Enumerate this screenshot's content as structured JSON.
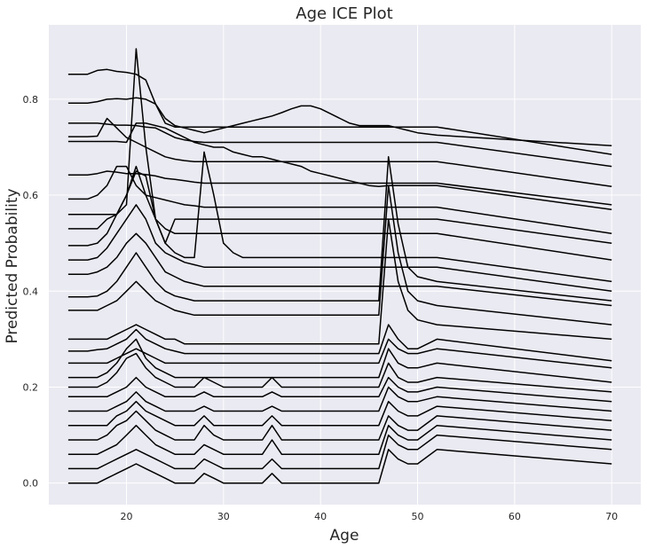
{
  "chart_data": {
    "type": "line",
    "title": "Age ICE Plot",
    "xlabel": "Age",
    "ylabel": "Predicted Probability",
    "xlim": [
      12,
      73
    ],
    "ylim": [
      -0.045,
      0.955
    ],
    "xticks": [
      20,
      30,
      40,
      50,
      60,
      70
    ],
    "yticks": [
      0.0,
      0.2,
      0.4,
      0.6,
      0.8
    ],
    "ytick_labels": [
      "0.0",
      "0.2",
      "0.4",
      "0.6",
      "0.8"
    ],
    "grid": true,
    "style": {
      "background": "#EAEAF2",
      "grid_color": "#FFFFFF",
      "line_color": "#000000"
    },
    "x": [
      14,
      16,
      17,
      18,
      19,
      20,
      21,
      22,
      23,
      24,
      25,
      26,
      27,
      28,
      29,
      30,
      31,
      32,
      33,
      34,
      35,
      36,
      37,
      38,
      39,
      40,
      41,
      42,
      43,
      44,
      45,
      46,
      47,
      48,
      49,
      50,
      52,
      70
    ],
    "series": [
      {
        "values": [
          0.852,
          0.852,
          0.86,
          0.862,
          0.858,
          0.856,
          0.852,
          0.84,
          0.79,
          0.75,
          0.742,
          0.742,
          0.742,
          0.742,
          0.742,
          0.742,
          0.742,
          0.742,
          0.742,
          0.742,
          0.742,
          0.742,
          0.742,
          0.742,
          0.742,
          0.742,
          0.742,
          0.742,
          0.742,
          0.742,
          0.742,
          0.742,
          0.742,
          0.742,
          0.742,
          0.742,
          0.742,
          0.685
        ]
      },
      {
        "values": [
          0.792,
          0.792,
          0.795,
          0.8,
          0.801,
          0.8,
          0.803,
          0.8,
          0.79,
          0.76,
          0.745,
          0.74,
          0.735,
          0.73,
          0.735,
          0.74,
          0.745,
          0.75,
          0.755,
          0.76,
          0.765,
          0.772,
          0.78,
          0.786,
          0.786,
          0.78,
          0.77,
          0.76,
          0.75,
          0.745,
          0.745,
          0.745,
          0.745,
          0.74,
          0.735,
          0.73,
          0.725,
          0.703
        ]
      },
      {
        "values": [
          0.75,
          0.75,
          0.75,
          0.748,
          0.746,
          0.746,
          0.745,
          0.742,
          0.74,
          0.73,
          0.72,
          0.715,
          0.712,
          0.71,
          0.71,
          0.71,
          0.71,
          0.71,
          0.71,
          0.71,
          0.71,
          0.71,
          0.71,
          0.71,
          0.71,
          0.71,
          0.71,
          0.71,
          0.71,
          0.71,
          0.71,
          0.71,
          0.71,
          0.71,
          0.71,
          0.71,
          0.71,
          0.66
        ]
      },
      {
        "values": [
          0.722,
          0.722,
          0.723,
          0.76,
          0.74,
          0.72,
          0.71,
          0.7,
          0.69,
          0.68,
          0.675,
          0.672,
          0.67,
          0.67,
          0.67,
          0.67,
          0.67,
          0.67,
          0.67,
          0.67,
          0.67,
          0.67,
          0.67,
          0.67,
          0.67,
          0.67,
          0.67,
          0.67,
          0.67,
          0.67,
          0.67,
          0.67,
          0.67,
          0.67,
          0.67,
          0.67,
          0.67,
          0.618
        ]
      },
      {
        "values": [
          0.712,
          0.712,
          0.712,
          0.712,
          0.712,
          0.71,
          0.75,
          0.75,
          0.745,
          0.74,
          0.73,
          0.72,
          0.71,
          0.705,
          0.7,
          0.7,
          0.69,
          0.685,
          0.68,
          0.68,
          0.675,
          0.67,
          0.665,
          0.66,
          0.65,
          0.645,
          0.64,
          0.635,
          0.63,
          0.625,
          0.62,
          0.618,
          0.62,
          0.62,
          0.62,
          0.62,
          0.62,
          0.57
        ]
      },
      {
        "values": [
          0.642,
          0.642,
          0.645,
          0.65,
          0.648,
          0.645,
          0.645,
          0.643,
          0.64,
          0.635,
          0.633,
          0.63,
          0.627,
          0.625,
          0.625,
          0.625,
          0.625,
          0.625,
          0.625,
          0.625,
          0.625,
          0.625,
          0.625,
          0.625,
          0.625,
          0.625,
          0.625,
          0.625,
          0.625,
          0.625,
          0.625,
          0.625,
          0.625,
          0.625,
          0.625,
          0.625,
          0.625,
          0.58
        ]
      },
      {
        "values": [
          0.592,
          0.592,
          0.6,
          0.62,
          0.66,
          0.66,
          0.62,
          0.6,
          0.595,
          0.59,
          0.585,
          0.58,
          0.578,
          0.575,
          0.575,
          0.575,
          0.575,
          0.575,
          0.575,
          0.575,
          0.575,
          0.575,
          0.575,
          0.575,
          0.575,
          0.575,
          0.575,
          0.575,
          0.575,
          0.575,
          0.575,
          0.575,
          0.575,
          0.575,
          0.575,
          0.575,
          0.575,
          0.52
        ]
      },
      {
        "values": [
          0.56,
          0.56,
          0.56,
          0.56,
          0.56,
          0.6,
          0.65,
          0.64,
          0.55,
          0.5,
          0.55,
          0.55,
          0.55,
          0.55,
          0.55,
          0.55,
          0.55,
          0.55,
          0.55,
          0.55,
          0.55,
          0.55,
          0.55,
          0.55,
          0.55,
          0.55,
          0.55,
          0.55,
          0.55,
          0.55,
          0.55,
          0.55,
          0.55,
          0.55,
          0.55,
          0.55,
          0.55,
          0.5
        ]
      },
      {
        "values": [
          0.53,
          0.53,
          0.53,
          0.55,
          0.56,
          0.58,
          0.905,
          0.7,
          0.55,
          0.53,
          0.52,
          0.52,
          0.52,
          0.52,
          0.52,
          0.52,
          0.52,
          0.52,
          0.52,
          0.52,
          0.52,
          0.52,
          0.52,
          0.52,
          0.52,
          0.52,
          0.52,
          0.52,
          0.52,
          0.52,
          0.52,
          0.52,
          0.52,
          0.52,
          0.52,
          0.52,
          0.52,
          0.465
        ]
      },
      {
        "values": [
          0.495,
          0.495,
          0.5,
          0.52,
          0.56,
          0.6,
          0.66,
          0.6,
          0.55,
          0.5,
          0.48,
          0.47,
          0.47,
          0.69,
          0.6,
          0.5,
          0.48,
          0.47,
          0.47,
          0.47,
          0.47,
          0.47,
          0.47,
          0.47,
          0.47,
          0.47,
          0.47,
          0.47,
          0.47,
          0.47,
          0.47,
          0.47,
          0.47,
          0.47,
          0.47,
          0.47,
          0.47,
          0.42
        ]
      },
      {
        "values": [
          0.465,
          0.465,
          0.47,
          0.49,
          0.52,
          0.55,
          0.58,
          0.55,
          0.5,
          0.48,
          0.47,
          0.46,
          0.455,
          0.45,
          0.45,
          0.45,
          0.45,
          0.45,
          0.45,
          0.45,
          0.45,
          0.45,
          0.45,
          0.45,
          0.45,
          0.45,
          0.45,
          0.45,
          0.45,
          0.45,
          0.45,
          0.45,
          0.45,
          0.45,
          0.45,
          0.45,
          0.45,
          0.4
        ]
      },
      {
        "values": [
          0.435,
          0.435,
          0.44,
          0.45,
          0.47,
          0.5,
          0.52,
          0.5,
          0.47,
          0.44,
          0.43,
          0.42,
          0.415,
          0.41,
          0.41,
          0.41,
          0.41,
          0.41,
          0.41,
          0.41,
          0.41,
          0.41,
          0.41,
          0.41,
          0.41,
          0.41,
          0.41,
          0.41,
          0.41,
          0.41,
          0.41,
          0.41,
          0.41,
          0.41,
          0.41,
          0.41,
          0.41,
          0.37
        ]
      },
      {
        "values": [
          0.388,
          0.388,
          0.39,
          0.4,
          0.42,
          0.45,
          0.48,
          0.45,
          0.42,
          0.4,
          0.39,
          0.385,
          0.38,
          0.38,
          0.38,
          0.38,
          0.38,
          0.38,
          0.38,
          0.38,
          0.38,
          0.38,
          0.38,
          0.38,
          0.38,
          0.38,
          0.38,
          0.38,
          0.38,
          0.38,
          0.38,
          0.38,
          0.68,
          0.54,
          0.45,
          0.43,
          0.42,
          0.38
        ]
      },
      {
        "values": [
          0.36,
          0.36,
          0.36,
          0.37,
          0.38,
          0.4,
          0.42,
          0.4,
          0.38,
          0.37,
          0.36,
          0.355,
          0.35,
          0.35,
          0.35,
          0.35,
          0.35,
          0.35,
          0.35,
          0.35,
          0.35,
          0.35,
          0.35,
          0.35,
          0.35,
          0.35,
          0.35,
          0.35,
          0.35,
          0.35,
          0.35,
          0.35,
          0.62,
          0.48,
          0.4,
          0.38,
          0.37,
          0.33
        ]
      },
      {
        "values": [
          0.3,
          0.3,
          0.3,
          0.3,
          0.31,
          0.32,
          0.33,
          0.32,
          0.31,
          0.3,
          0.3,
          0.29,
          0.29,
          0.29,
          0.29,
          0.29,
          0.29,
          0.29,
          0.29,
          0.29,
          0.29,
          0.29,
          0.29,
          0.29,
          0.29,
          0.29,
          0.29,
          0.29,
          0.29,
          0.29,
          0.29,
          0.29,
          0.55,
          0.42,
          0.36,
          0.34,
          0.33,
          0.3
        ]
      },
      {
        "values": [
          0.275,
          0.275,
          0.278,
          0.28,
          0.29,
          0.3,
          0.32,
          0.3,
          0.29,
          0.28,
          0.275,
          0.27,
          0.27,
          0.27,
          0.27,
          0.27,
          0.27,
          0.27,
          0.27,
          0.27,
          0.27,
          0.27,
          0.27,
          0.27,
          0.27,
          0.27,
          0.27,
          0.27,
          0.27,
          0.27,
          0.27,
          0.27,
          0.33,
          0.3,
          0.28,
          0.28,
          0.3,
          0.255
        ]
      },
      {
        "values": [
          0.25,
          0.25,
          0.25,
          0.25,
          0.26,
          0.27,
          0.28,
          0.27,
          0.26,
          0.25,
          0.25,
          0.25,
          0.25,
          0.25,
          0.25,
          0.25,
          0.25,
          0.25,
          0.25,
          0.25,
          0.25,
          0.25,
          0.25,
          0.25,
          0.25,
          0.25,
          0.25,
          0.25,
          0.25,
          0.25,
          0.25,
          0.25,
          0.3,
          0.28,
          0.27,
          0.27,
          0.28,
          0.24
        ]
      },
      {
        "values": [
          0.22,
          0.22,
          0.22,
          0.23,
          0.25,
          0.28,
          0.3,
          0.26,
          0.24,
          0.23,
          0.22,
          0.22,
          0.22,
          0.22,
          0.22,
          0.22,
          0.22,
          0.22,
          0.22,
          0.22,
          0.22,
          0.22,
          0.22,
          0.22,
          0.22,
          0.22,
          0.22,
          0.22,
          0.22,
          0.22,
          0.22,
          0.22,
          0.28,
          0.25,
          0.24,
          0.24,
          0.25,
          0.21
        ]
      },
      {
        "values": [
          0.2,
          0.2,
          0.2,
          0.21,
          0.23,
          0.26,
          0.27,
          0.24,
          0.22,
          0.21,
          0.2,
          0.2,
          0.2,
          0.22,
          0.21,
          0.2,
          0.2,
          0.2,
          0.2,
          0.2,
          0.22,
          0.2,
          0.2,
          0.2,
          0.2,
          0.2,
          0.2,
          0.2,
          0.2,
          0.2,
          0.2,
          0.2,
          0.25,
          0.22,
          0.21,
          0.21,
          0.22,
          0.19
        ]
      },
      {
        "values": [
          0.18,
          0.18,
          0.18,
          0.18,
          0.19,
          0.2,
          0.22,
          0.2,
          0.19,
          0.18,
          0.18,
          0.18,
          0.18,
          0.19,
          0.18,
          0.18,
          0.18,
          0.18,
          0.18,
          0.18,
          0.19,
          0.18,
          0.18,
          0.18,
          0.18,
          0.18,
          0.18,
          0.18,
          0.18,
          0.18,
          0.18,
          0.18,
          0.22,
          0.2,
          0.19,
          0.19,
          0.2,
          0.17
        ]
      },
      {
        "values": [
          0.15,
          0.15,
          0.15,
          0.15,
          0.16,
          0.17,
          0.19,
          0.17,
          0.16,
          0.15,
          0.15,
          0.15,
          0.15,
          0.16,
          0.15,
          0.15,
          0.15,
          0.15,
          0.15,
          0.15,
          0.16,
          0.15,
          0.15,
          0.15,
          0.15,
          0.15,
          0.15,
          0.15,
          0.15,
          0.15,
          0.15,
          0.15,
          0.2,
          0.18,
          0.17,
          0.17,
          0.18,
          0.15
        ]
      },
      {
        "values": [
          0.12,
          0.12,
          0.12,
          0.12,
          0.14,
          0.15,
          0.17,
          0.15,
          0.14,
          0.13,
          0.12,
          0.12,
          0.12,
          0.14,
          0.12,
          0.12,
          0.12,
          0.12,
          0.12,
          0.12,
          0.14,
          0.12,
          0.12,
          0.12,
          0.12,
          0.12,
          0.12,
          0.12,
          0.12,
          0.12,
          0.12,
          0.12,
          0.17,
          0.15,
          0.14,
          0.14,
          0.16,
          0.13
        ]
      },
      {
        "values": [
          0.09,
          0.09,
          0.09,
          0.1,
          0.12,
          0.13,
          0.15,
          0.13,
          0.11,
          0.1,
          0.09,
          0.09,
          0.09,
          0.12,
          0.1,
          0.09,
          0.09,
          0.09,
          0.09,
          0.09,
          0.12,
          0.09,
          0.09,
          0.09,
          0.09,
          0.09,
          0.09,
          0.09,
          0.09,
          0.09,
          0.09,
          0.09,
          0.14,
          0.12,
          0.11,
          0.11,
          0.14,
          0.11
        ]
      },
      {
        "values": [
          0.06,
          0.06,
          0.06,
          0.07,
          0.08,
          0.1,
          0.12,
          0.1,
          0.08,
          0.07,
          0.06,
          0.06,
          0.06,
          0.08,
          0.07,
          0.06,
          0.06,
          0.06,
          0.06,
          0.06,
          0.09,
          0.06,
          0.06,
          0.06,
          0.06,
          0.06,
          0.06,
          0.06,
          0.06,
          0.06,
          0.06,
          0.06,
          0.12,
          0.1,
          0.09,
          0.09,
          0.12,
          0.09
        ]
      },
      {
        "values": [
          0.03,
          0.03,
          0.03,
          0.04,
          0.05,
          0.06,
          0.07,
          0.06,
          0.05,
          0.04,
          0.03,
          0.03,
          0.03,
          0.05,
          0.04,
          0.03,
          0.03,
          0.03,
          0.03,
          0.03,
          0.05,
          0.03,
          0.03,
          0.03,
          0.03,
          0.03,
          0.03,
          0.03,
          0.03,
          0.03,
          0.03,
          0.03,
          0.1,
          0.08,
          0.07,
          0.07,
          0.1,
          0.07
        ]
      },
      {
        "values": [
          0.0,
          0.0,
          0.0,
          0.01,
          0.02,
          0.03,
          0.04,
          0.03,
          0.02,
          0.01,
          0.0,
          0.0,
          0.0,
          0.02,
          0.01,
          0.0,
          0.0,
          0.0,
          0.0,
          0.0,
          0.02,
          0.0,
          0.0,
          0.0,
          0.0,
          0.0,
          0.0,
          0.0,
          0.0,
          0.0,
          0.0,
          0.0,
          0.07,
          0.05,
          0.04,
          0.04,
          0.07,
          0.04
        ]
      }
    ]
  }
}
